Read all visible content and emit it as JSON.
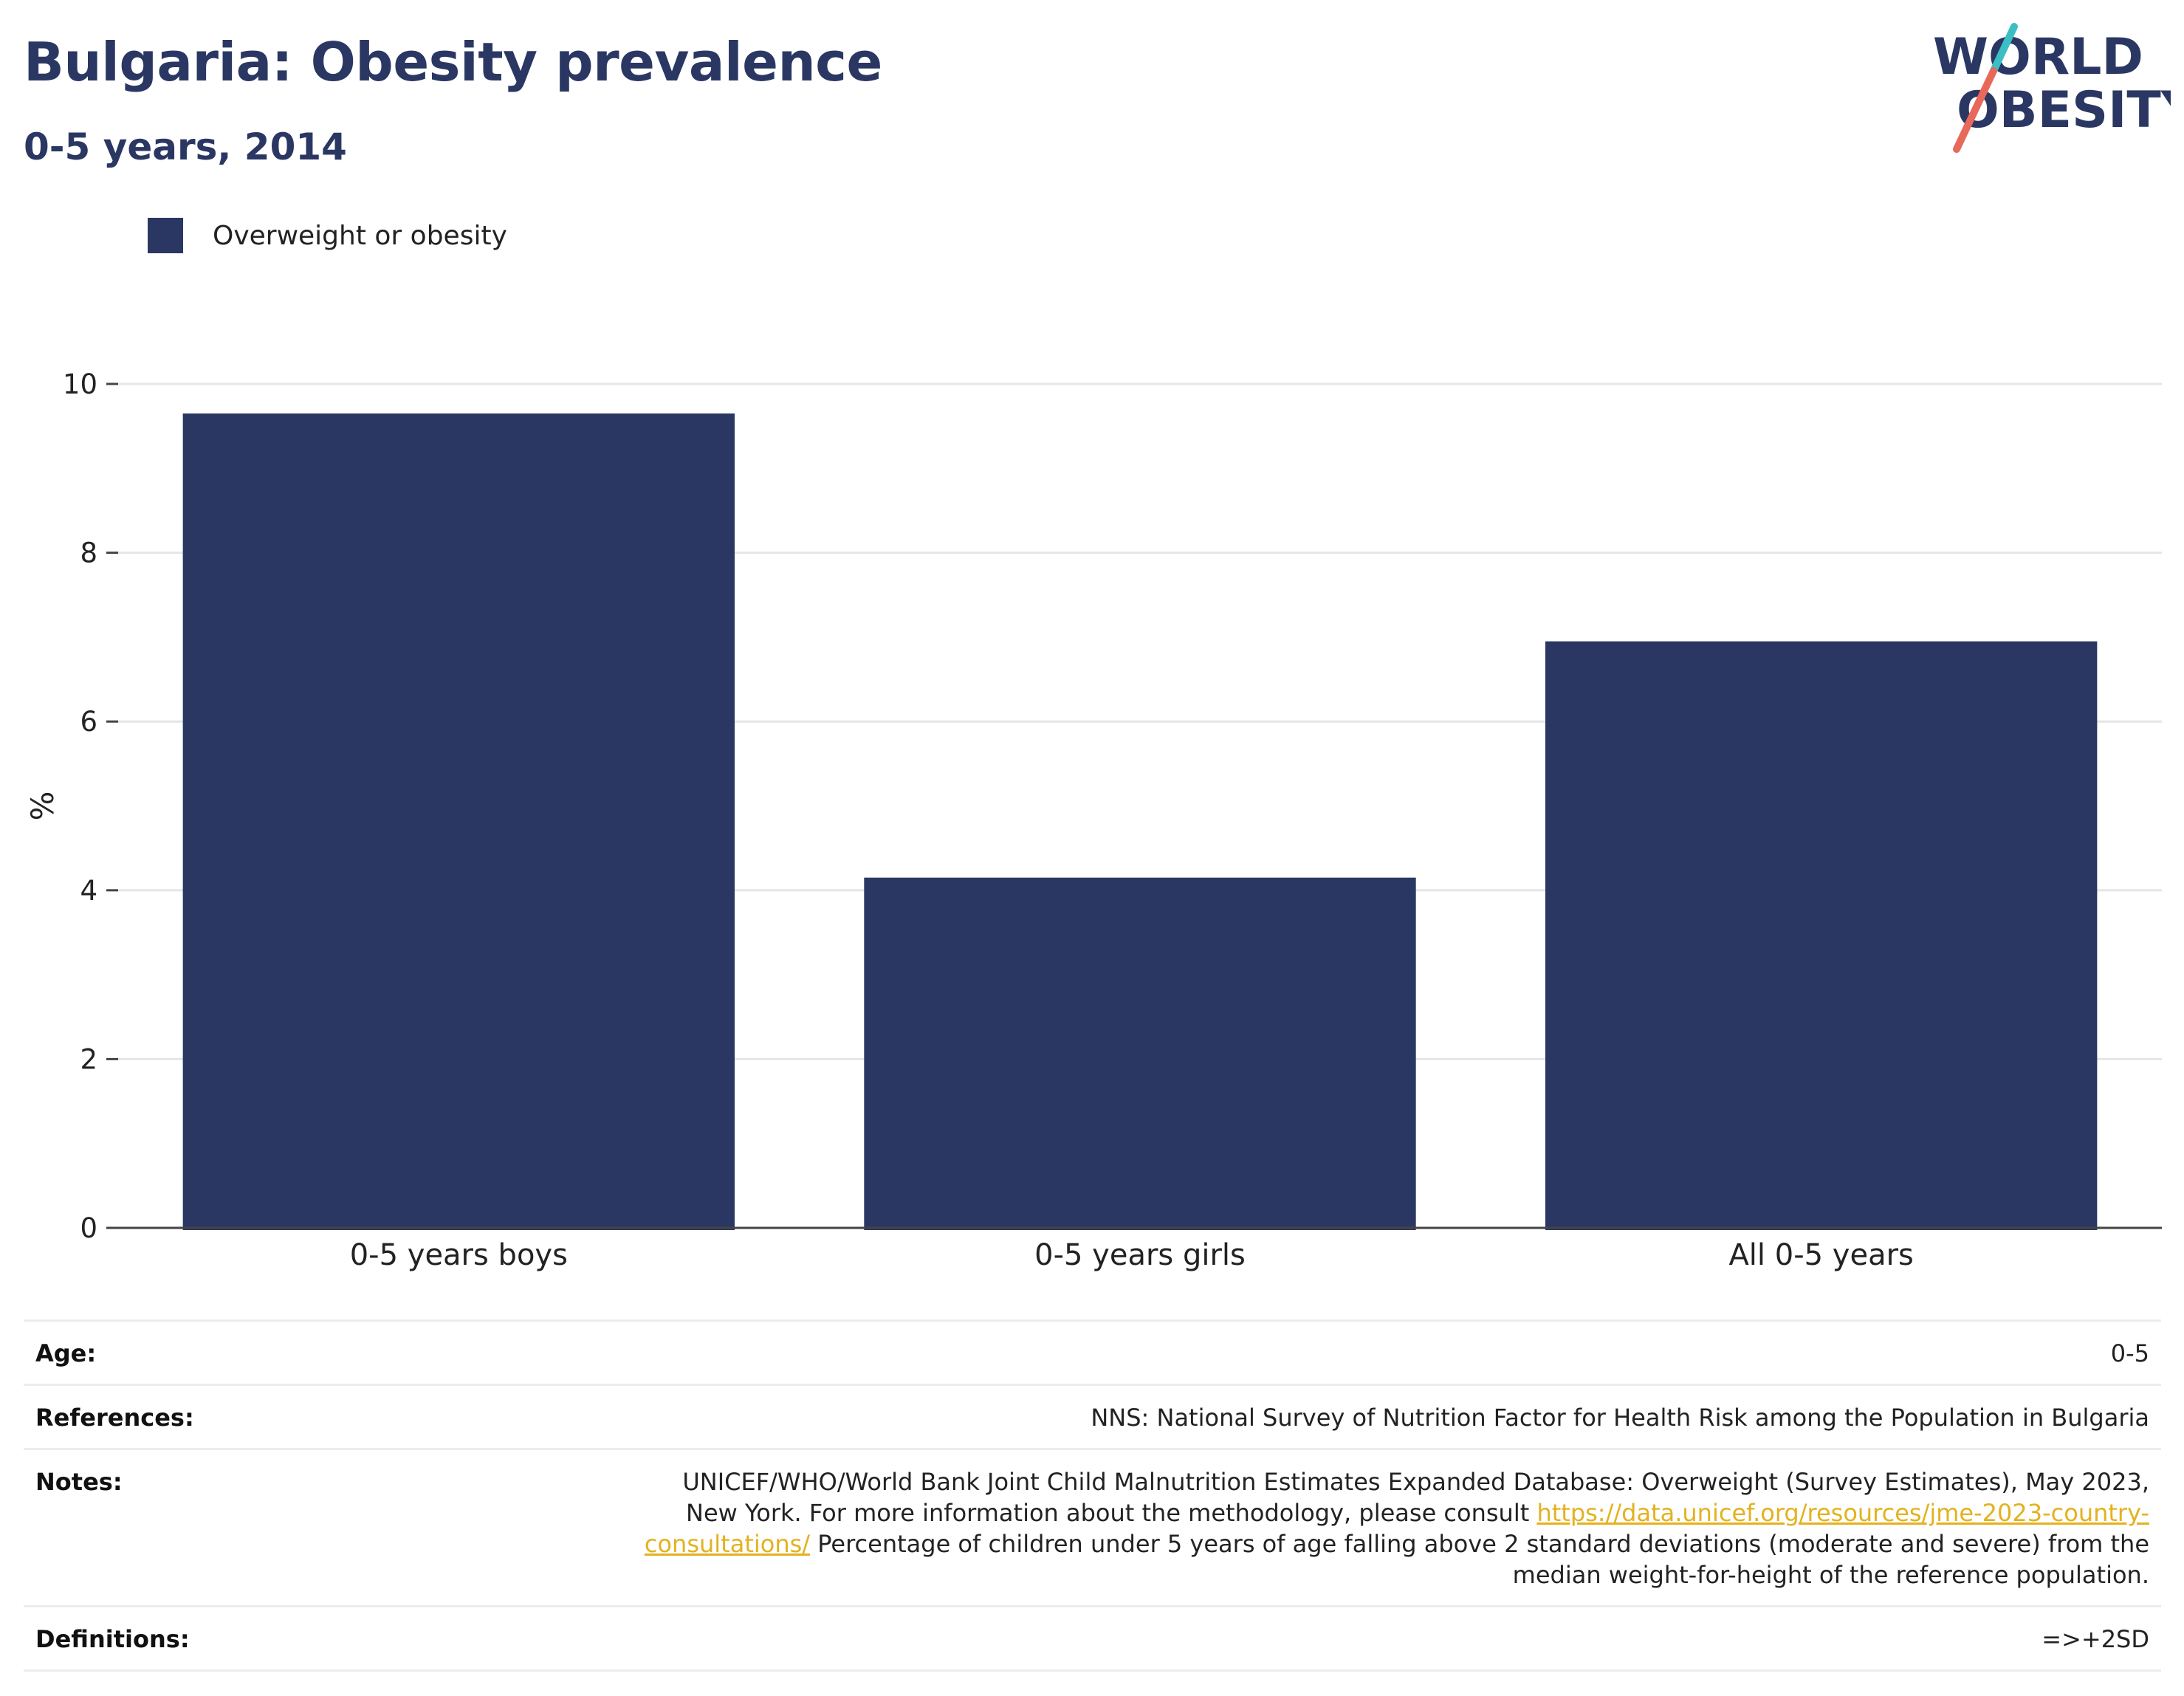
{
  "header": {
    "title": "Bulgaria: Obesity prevalence",
    "subtitle": "0-5 years, 2014"
  },
  "logo": {
    "line1": "WORLD",
    "line2": "OBESITY"
  },
  "chart_data": {
    "type": "bar",
    "categories": [
      "0-5 years boys",
      "0-5 years girls",
      "All 0-5 years"
    ],
    "series": [
      {
        "name": "Overweight or obesity",
        "values": [
          9.65,
          4.15,
          6.95
        ],
        "color": "#2b3763"
      }
    ],
    "ylabel": "%",
    "ylim": [
      0,
      10
    ],
    "yticks": [
      0,
      2,
      4,
      6,
      8,
      10
    ],
    "grid": true,
    "legend": "top-left"
  },
  "metadata": {
    "age": {
      "key": "Age:",
      "value": "0-5"
    },
    "references": {
      "key": "References:",
      "value": "NNS: National Survey of Nutrition Factor for Health Risk among the Population in Bulgaria"
    },
    "notes": {
      "key": "Notes:",
      "text_before": "UNICEF/WHO/World Bank Joint Child Malnutrition Estimates Expanded Database: Overweight (Survey Estimates), May 2023, New York. For more information about the methodology, please consult ",
      "link": "https://data.unicef.org/resources/jme-2023-country-consultations/",
      "text_after": " Percentage of children under 5 years of age falling above 2 standard deviations (moderate and severe) from the median weight-for-height of the reference population."
    },
    "definitions": {
      "key": "Definitions:",
      "value": "=>+2SD"
    }
  },
  "colors": {
    "brand_navy": "#2b3763",
    "logo_teal": "#3cbfc4",
    "logo_coral": "#e8685a",
    "link": "#e3b21f"
  }
}
